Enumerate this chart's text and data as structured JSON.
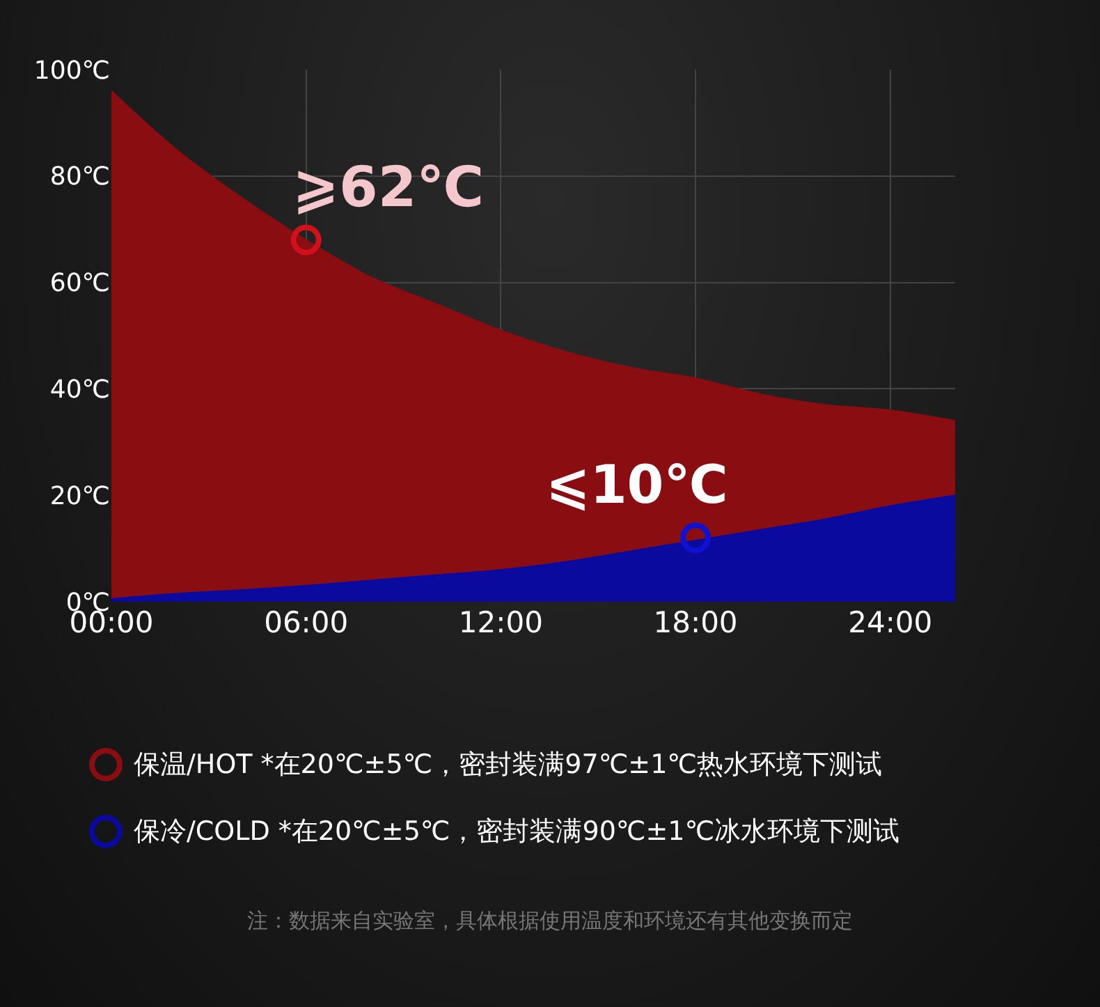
{
  "chart_data": {
    "type": "area",
    "x": [
      0,
      2,
      4,
      6,
      8,
      10,
      12,
      14,
      16,
      18,
      20,
      22,
      24,
      26
    ],
    "series": [
      {
        "name": "保温/HOT *在20℃±5℃，密封装满97℃±1℃热水环境下测试",
        "color": "#8a0d12",
        "values": [
          96,
          85,
          76,
          68,
          61,
          56,
          51,
          47,
          44,
          42,
          39,
          37,
          36,
          34
        ]
      },
      {
        "name": "保冷/COLD *在20℃±5℃，密封装满90℃±1℃冰水环境下测试",
        "color": "#0a0a9e",
        "values": [
          0.5,
          1.5,
          2.2,
          3,
          4,
          5,
          6,
          7.5,
          9.5,
          11.5,
          13.5,
          15.5,
          18,
          20
        ]
      },
      {
        "type": "scatter",
        "color": "#d0101a",
        "x": [
          6
        ],
        "values": [
          68
        ],
        "marker": "circle"
      },
      {
        "type": "scatter",
        "color": "#1010d0",
        "x": [
          18
        ],
        "values": [
          12
        ],
        "marker": "circle"
      }
    ],
    "xlim": [
      0,
      26
    ],
    "xticks": [
      {
        "value": 0,
        "label": "00:00"
      },
      {
        "value": 6,
        "label": "06:00"
      },
      {
        "value": 12,
        "label": "12:00"
      },
      {
        "value": 18,
        "label": "18:00"
      },
      {
        "value": 24,
        "label": "24:00"
      }
    ],
    "ylim": [
      0,
      100
    ],
    "yticks": [
      {
        "value": 0,
        "label": "0℃"
      },
      {
        "value": 20,
        "label": "20℃"
      },
      {
        "value": 40,
        "label": "40℃"
      },
      {
        "value": 60,
        "label": "60℃"
      },
      {
        "value": 80,
        "label": "80℃"
      },
      {
        "value": 100,
        "label": "100℃"
      }
    ],
    "grid": true,
    "legend": "bottom",
    "annotations": [
      {
        "text": "⩾62℃",
        "x": 6,
        "y": 68
      },
      {
        "text": "⩽10℃",
        "x": 18,
        "y": 12
      },
      "注：数据来自实验室，具体根据使用温度和环境还有其他变换而定"
    ]
  }
}
